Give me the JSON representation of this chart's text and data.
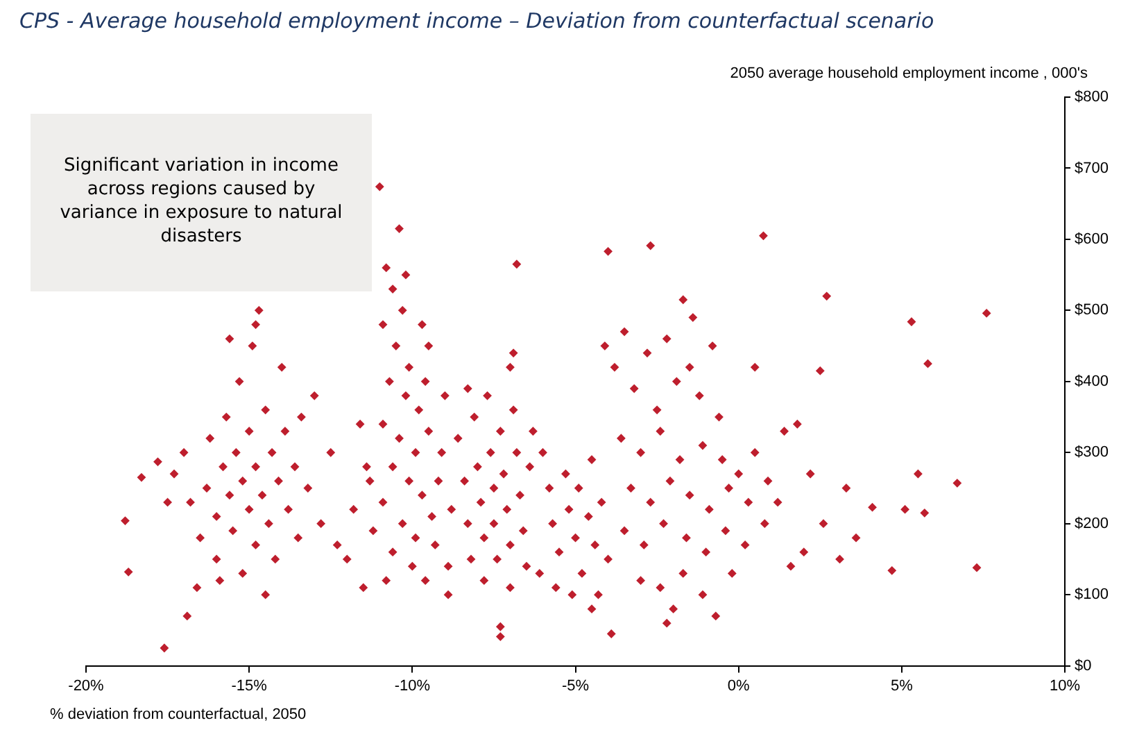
{
  "chart_data": {
    "type": "scatter",
    "title": "CPS - Average household employment income – Deviation from counterfactual scenario",
    "xlabel": "% deviation from counterfactual, 2050",
    "ylabel": "2050 average household employment income , 000's",
    "annotations": [
      "Significant variation in income across regions caused by variance in exposure to natural disasters"
    ],
    "xlim": [
      -20,
      10
    ],
    "xticks": [
      {
        "value": -20,
        "label": "-20%"
      },
      {
        "value": -15,
        "label": "-15%"
      },
      {
        "value": -10,
        "label": "-10%"
      },
      {
        "value": -5,
        "label": "-5%"
      },
      {
        "value": 0,
        "label": "0%"
      },
      {
        "value": 5,
        "label": "5%"
      },
      {
        "value": 10,
        "label": "10%"
      }
    ],
    "ylim": [
      0,
      800
    ],
    "yticks": [
      {
        "value": 0,
        "label": "$0"
      },
      {
        "value": 100,
        "label": "$100"
      },
      {
        "value": 200,
        "label": "$200"
      },
      {
        "value": 300,
        "label": "$300"
      },
      {
        "value": 400,
        "label": "$400"
      },
      {
        "value": 500,
        "label": "$500"
      },
      {
        "value": 600,
        "label": "$600"
      },
      {
        "value": 700,
        "label": "$700"
      },
      {
        "value": 800,
        "label": "$800"
      }
    ],
    "grid": false,
    "legend": false,
    "marker": "diamond",
    "series": [
      {
        "color": "#be1e2d",
        "x": [
          -18.7,
          -18.8,
          -18.3,
          -17.8,
          -17.6,
          -17.3,
          -17,
          -16.8,
          -16.5,
          -16.3,
          -16.2,
          -16,
          -16,
          -15.8,
          -15.7,
          -15.6,
          -15.5,
          -15.4,
          -15.3,
          -15.2,
          -15.2,
          -15,
          -15,
          -14.9,
          -14.8,
          -14.8,
          -14.7,
          -14.6,
          -14.5,
          -14.4,
          -14.3,
          -14.2,
          -14.1,
          -14,
          -13.9,
          -13.8,
          -13.6,
          -13.5,
          -13.4,
          -13.2,
          -13,
          -12.8,
          -12.5,
          -16.6,
          -16.9,
          -15.9,
          -14.5,
          -17.5,
          -12.3,
          -12,
          -11.5,
          -11.8,
          -11.3,
          -15.6,
          -14.8,
          -11,
          -10.4,
          -10.8,
          -10.6,
          -10.3,
          -10.9,
          -10.5,
          -10.1,
          -9.7,
          -9.5,
          -10.7,
          -10.2,
          -9.8,
          -10.9,
          -10.4,
          -9.9,
          -9.5,
          -10.6,
          -10.1,
          -9.7,
          -10.9,
          -10.3,
          -9.9,
          -9.4,
          -10.6,
          -10,
          -11.2,
          -11.4,
          -9.2,
          -9,
          -9.1,
          -10.2,
          -9.6,
          -11.6,
          -9.3,
          -10.8,
          -9.6,
          -8.6,
          -8.4,
          -8.3,
          -8.2,
          -8.1,
          -8,
          -7.9,
          -7.8,
          -7.8,
          -7.7,
          -7.6,
          -7.5,
          -7.5,
          -7.4,
          -7.3,
          -7.2,
          -7.1,
          -7,
          -7,
          -6.9,
          -6.8,
          -6.7,
          -6.6,
          -6.5,
          -6.4,
          -6.3,
          -8.8,
          -8.9,
          -7.3,
          -7.3,
          -6.8,
          -6.9,
          -7,
          -8.3,
          -8.9,
          -6,
          -5.8,
          -5.7,
          -5.5,
          -5.3,
          -5.2,
          -5,
          -4.9,
          -4.8,
          -4.6,
          -4.5,
          -4.4,
          -4.2,
          -4,
          -5.6,
          -5.1,
          -4.3,
          -3.9,
          -4.5,
          -6.1,
          -4,
          -2.7,
          -4.1,
          -3.5,
          -2.8,
          -2.2,
          -1.7,
          -1.4,
          -3.8,
          -3.2,
          -2.5,
          -1.9,
          -1.2,
          -0.6,
          -3.6,
          -3,
          -2.4,
          -1.8,
          -1.1,
          -0.5,
          0,
          0.5,
          -3.3,
          -2.7,
          -2.1,
          -1.5,
          -0.9,
          -0.3,
          0.3,
          0.9,
          -3.5,
          -2.9,
          -2.3,
          -1.6,
          -1,
          -0.4,
          0.2,
          0.8,
          -3,
          -2.4,
          -1.7,
          -1.1,
          -0.7,
          -2,
          -0.2,
          -1.5,
          -0.8,
          -2.2,
          1.2,
          1.4,
          0.5,
          0.76,
          2.7,
          5.3,
          7.6,
          5.8,
          2.5,
          7.3,
          4.7,
          6.7,
          4.1,
          1.8,
          2.2,
          2.6,
          3.3,
          3.1,
          5.1,
          5.7,
          3.6,
          2,
          1.6,
          5.5
        ],
        "values": [
          132,
          204,
          265,
          287,
          25,
          270,
          300,
          230,
          180,
          250,
          320,
          210,
          150,
          280,
          350,
          240,
          190,
          300,
          400,
          260,
          130,
          220,
          330,
          450,
          280,
          170,
          500,
          240,
          360,
          200,
          300,
          150,
          260,
          420,
          330,
          220,
          280,
          180,
          350,
          250,
          380,
          200,
          300,
          110,
          70,
          120,
          100,
          230,
          170,
          150,
          110,
          220,
          260,
          460,
          480,
          674,
          615,
          560,
          530,
          500,
          480,
          450,
          420,
          480,
          450,
          400,
          380,
          360,
          340,
          320,
          300,
          330,
          280,
          260,
          240,
          230,
          200,
          180,
          210,
          160,
          140,
          190,
          280,
          260,
          380,
          300,
          550,
          400,
          340,
          170,
          120,
          120,
          320,
          260,
          200,
          150,
          350,
          280,
          230,
          180,
          120,
          380,
          300,
          250,
          200,
          150,
          330,
          270,
          220,
          170,
          110,
          360,
          300,
          240,
          190,
          140,
          280,
          330,
          220,
          140,
          41,
          55,
          565,
          440,
          420,
          390,
          100,
          300,
          250,
          200,
          160,
          270,
          220,
          180,
          250,
          130,
          210,
          290,
          170,
          230,
          150,
          110,
          100,
          100,
          45,
          80,
          130,
          583,
          591,
          450,
          470,
          440,
          460,
          515,
          490,
          420,
          390,
          360,
          400,
          380,
          350,
          320,
          300,
          330,
          290,
          310,
          290,
          270,
          300,
          250,
          230,
          260,
          240,
          220,
          250,
          230,
          260,
          190,
          170,
          200,
          180,
          160,
          190,
          170,
          200,
          120,
          110,
          130,
          100,
          70,
          80,
          130,
          420,
          450,
          60,
          230,
          330,
          420,
          605,
          520,
          484,
          496,
          425,
          415,
          138,
          134,
          257,
          223,
          340,
          270,
          200,
          250,
          150,
          220,
          215,
          180,
          160,
          140,
          270
        ]
      }
    ]
  }
}
